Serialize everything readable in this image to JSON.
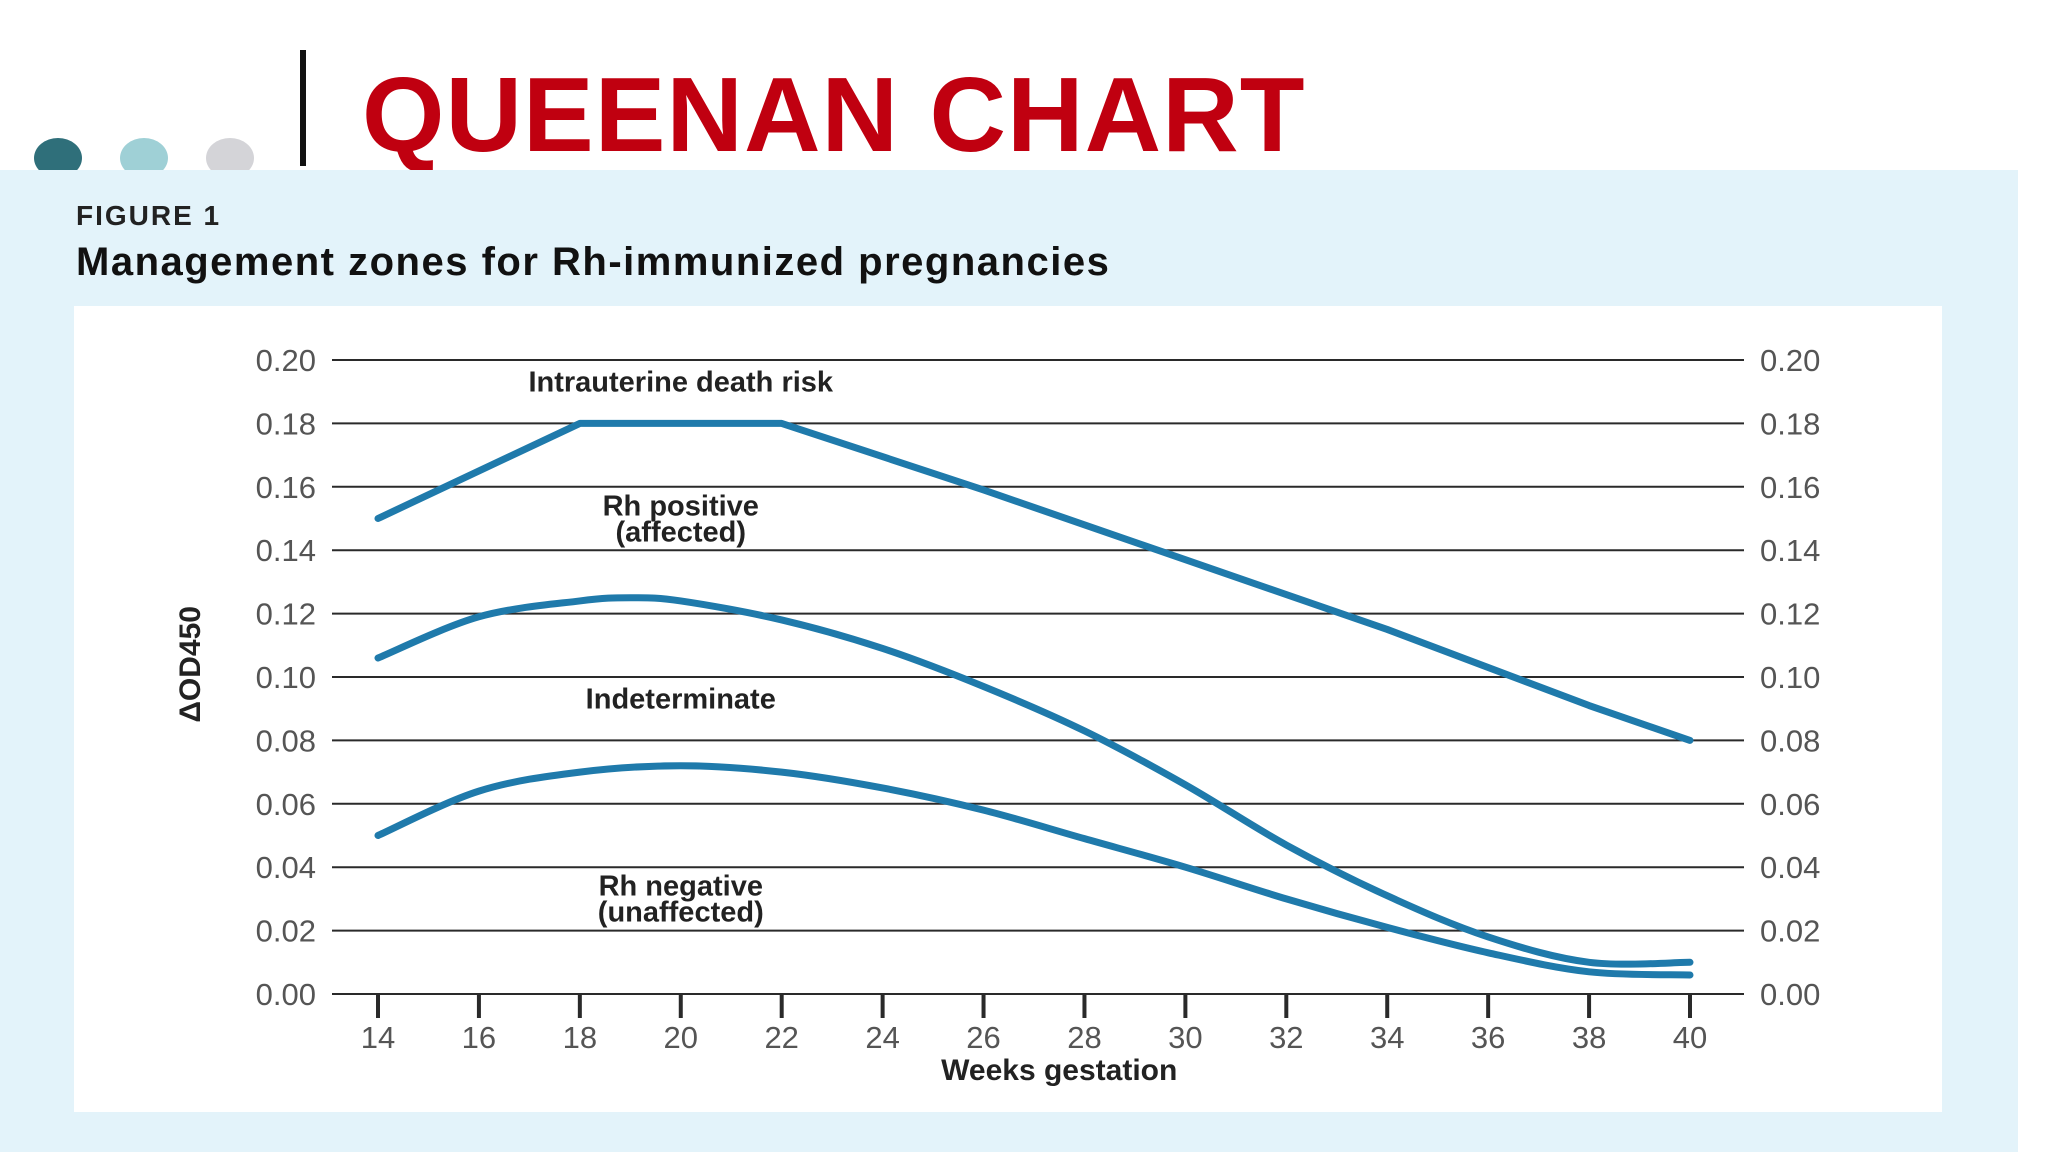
{
  "slide": {
    "title": "QUEENAN CHART",
    "title_color": "#c00010",
    "dot_colors": [
      "#2f6f7a",
      "#9fd0d6",
      "#d4d4d8"
    ]
  },
  "figure": {
    "label": "FIGURE 1",
    "title": "Management zones for Rh-immunized pregnancies"
  },
  "chart_data": {
    "type": "line",
    "title": "Management zones for Rh-immunized pregnancies",
    "xlabel": "Weeks gestation",
    "ylabel": "ΔOD450",
    "xlim": [
      14,
      40
    ],
    "ylim": [
      0,
      0.2
    ],
    "x_ticks": [
      "14",
      "16",
      "18",
      "20",
      "22",
      "24",
      "26",
      "28",
      "30",
      "32",
      "34",
      "36",
      "38",
      "40"
    ],
    "y_ticks": [
      "0.00",
      "0.02",
      "0.04",
      "0.06",
      "0.08",
      "0.10",
      "0.12",
      "0.14",
      "0.16",
      "0.18",
      "0.20"
    ],
    "grid": "horizontal",
    "line_color": "#1f7aab",
    "series": [
      {
        "x": [
          14,
          18,
          22,
          26,
          30,
          34,
          38,
          40
        ],
        "values": [
          0.15,
          0.18,
          0.18,
          0.159,
          0.137,
          0.115,
          0.091,
          0.08
        ]
      },
      {
        "x": [
          14,
          16,
          18,
          19,
          20,
          22,
          24,
          26,
          28,
          30,
          32,
          34,
          36,
          38,
          40
        ],
        "values": [
          0.106,
          0.119,
          0.124,
          0.125,
          0.124,
          0.118,
          0.109,
          0.097,
          0.083,
          0.066,
          0.047,
          0.031,
          0.018,
          0.01,
          0.01
        ]
      },
      {
        "x": [
          14,
          16,
          18,
          20,
          22,
          24,
          26,
          28,
          30,
          32,
          34,
          36,
          38,
          40
        ],
        "values": [
          0.05,
          0.064,
          0.07,
          0.072,
          0.07,
          0.065,
          0.058,
          0.049,
          0.04,
          0.03,
          0.021,
          0.013,
          0.007,
          0.006
        ]
      }
    ],
    "zone_labels": [
      {
        "lines": [
          "Intrauterine death risk"
        ],
        "x": 20,
        "y": 0.19
      },
      {
        "lines": [
          "Rh positive",
          "(affected)"
        ],
        "x": 20,
        "y": 0.151
      },
      {
        "lines": [
          "Indeterminate"
        ],
        "x": 20,
        "y": 0.09
      },
      {
        "lines": [
          "Rh negative",
          "(unaffected)"
        ],
        "x": 20,
        "y": 0.031
      }
    ]
  }
}
